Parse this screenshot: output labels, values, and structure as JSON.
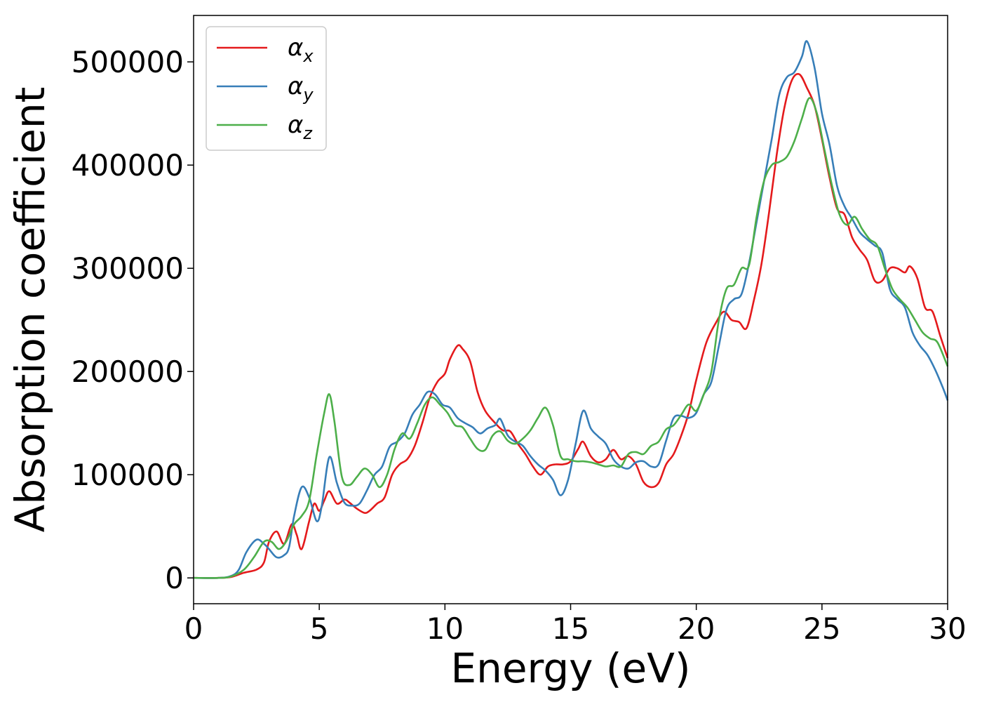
{
  "chart_data": {
    "type": "line",
    "title": "",
    "xlabel": "Energy (eV)",
    "ylabel": "Absorption coefficient",
    "xlim": [
      0,
      30
    ],
    "ylim": [
      -25000,
      545000
    ],
    "xticks": [
      "0",
      "5",
      "10",
      "15",
      "20",
      "25",
      "30"
    ],
    "yticks": [
      "0",
      "100000",
      "200000",
      "300000",
      "400000",
      "500000"
    ],
    "grid": false,
    "legend_position": "top-left",
    "series": [
      {
        "name": "αx",
        "label_base": "α",
        "label_sub": "x",
        "color": "#e41a1c",
        "points": [
          [
            0,
            0
          ],
          [
            1,
            0
          ],
          [
            1.5,
            1000
          ],
          [
            2,
            5000
          ],
          [
            2.5,
            8000
          ],
          [
            2.8,
            15000
          ],
          [
            3.0,
            35000
          ],
          [
            3.3,
            45000
          ],
          [
            3.6,
            33000
          ],
          [
            3.9,
            52000
          ],
          [
            4.1,
            42000
          ],
          [
            4.3,
            28000
          ],
          [
            4.6,
            55000
          ],
          [
            4.8,
            72000
          ],
          [
            5.0,
            65000
          ],
          [
            5.2,
            75000
          ],
          [
            5.4,
            84000
          ],
          [
            5.7,
            72000
          ],
          [
            6.0,
            76000
          ],
          [
            6.2,
            73000
          ],
          [
            6.5,
            67000
          ],
          [
            6.8,
            63000
          ],
          [
            7.0,
            65000
          ],
          [
            7.3,
            72000
          ],
          [
            7.6,
            78000
          ],
          [
            7.9,
            100000
          ],
          [
            8.2,
            110000
          ],
          [
            8.5,
            115000
          ],
          [
            8.8,
            128000
          ],
          [
            9.1,
            150000
          ],
          [
            9.4,
            175000
          ],
          [
            9.7,
            190000
          ],
          [
            10.0,
            198000
          ],
          [
            10.2,
            212000
          ],
          [
            10.5,
            225000
          ],
          [
            10.7,
            222000
          ],
          [
            11.0,
            210000
          ],
          [
            11.3,
            180000
          ],
          [
            11.6,
            162000
          ],
          [
            12.0,
            150000
          ],
          [
            12.3,
            143000
          ],
          [
            12.6,
            142000
          ],
          [
            12.9,
            130000
          ],
          [
            13.2,
            120000
          ],
          [
            13.5,
            108000
          ],
          [
            13.8,
            100000
          ],
          [
            14.1,
            108000
          ],
          [
            14.4,
            110000
          ],
          [
            14.7,
            110000
          ],
          [
            15.0,
            113000
          ],
          [
            15.3,
            125000
          ],
          [
            15.5,
            132000
          ],
          [
            15.8,
            118000
          ],
          [
            16.1,
            112000
          ],
          [
            16.4,
            115000
          ],
          [
            16.7,
            124000
          ],
          [
            17.0,
            115000
          ],
          [
            17.3,
            118000
          ],
          [
            17.6,
            110000
          ],
          [
            17.9,
            93000
          ],
          [
            18.2,
            88000
          ],
          [
            18.5,
            92000
          ],
          [
            18.8,
            110000
          ],
          [
            19.1,
            120000
          ],
          [
            19.4,
            138000
          ],
          [
            19.7,
            160000
          ],
          [
            20.0,
            192000
          ],
          [
            20.4,
            228000
          ],
          [
            20.8,
            248000
          ],
          [
            21.1,
            258000
          ],
          [
            21.4,
            250000
          ],
          [
            21.7,
            248000
          ],
          [
            22.0,
            242000
          ],
          [
            22.3,
            270000
          ],
          [
            22.6,
            305000
          ],
          [
            22.9,
            355000
          ],
          [
            23.2,
            410000
          ],
          [
            23.5,
            455000
          ],
          [
            23.8,
            482000
          ],
          [
            24.1,
            488000
          ],
          [
            24.4,
            475000
          ],
          [
            24.7,
            458000
          ],
          [
            25.0,
            425000
          ],
          [
            25.3,
            388000
          ],
          [
            25.6,
            358000
          ],
          [
            25.9,
            352000
          ],
          [
            26.2,
            330000
          ],
          [
            26.5,
            318000
          ],
          [
            26.8,
            308000
          ],
          [
            27.1,
            288000
          ],
          [
            27.4,
            288000
          ],
          [
            27.7,
            300000
          ],
          [
            28.0,
            300000
          ],
          [
            28.3,
            296000
          ],
          [
            28.5,
            302000
          ],
          [
            28.8,
            290000
          ],
          [
            29.1,
            262000
          ],
          [
            29.4,
            258000
          ],
          [
            29.7,
            235000
          ],
          [
            30.0,
            213000
          ]
        ]
      },
      {
        "name": "αy",
        "label_base": "α",
        "label_sub": "y",
        "color": "#377eb8",
        "points": [
          [
            0,
            0
          ],
          [
            1,
            0
          ],
          [
            1.5,
            2000
          ],
          [
            1.8,
            8000
          ],
          [
            2.1,
            25000
          ],
          [
            2.5,
            37000
          ],
          [
            2.8,
            33000
          ],
          [
            3.0,
            28000
          ],
          [
            3.3,
            20000
          ],
          [
            3.6,
            22000
          ],
          [
            3.8,
            30000
          ],
          [
            4.0,
            60000
          ],
          [
            4.3,
            88000
          ],
          [
            4.6,
            78000
          ],
          [
            4.9,
            55000
          ],
          [
            5.1,
            70000
          ],
          [
            5.4,
            117000
          ],
          [
            5.7,
            92000
          ],
          [
            6.0,
            73000
          ],
          [
            6.3,
            70000
          ],
          [
            6.6,
            72000
          ],
          [
            6.9,
            85000
          ],
          [
            7.2,
            100000
          ],
          [
            7.5,
            108000
          ],
          [
            7.8,
            127000
          ],
          [
            8.1,
            132000
          ],
          [
            8.4,
            140000
          ],
          [
            8.7,
            158000
          ],
          [
            9.0,
            168000
          ],
          [
            9.3,
            180000
          ],
          [
            9.6,
            178000
          ],
          [
            9.9,
            168000
          ],
          [
            10.2,
            165000
          ],
          [
            10.5,
            155000
          ],
          [
            10.8,
            150000
          ],
          [
            11.1,
            146000
          ],
          [
            11.4,
            140000
          ],
          [
            11.7,
            145000
          ],
          [
            12.0,
            148000
          ],
          [
            12.2,
            154000
          ],
          [
            12.5,
            138000
          ],
          [
            12.8,
            132000
          ],
          [
            13.1,
            128000
          ],
          [
            13.4,
            118000
          ],
          [
            13.7,
            110000
          ],
          [
            14.0,
            104000
          ],
          [
            14.3,
            95000
          ],
          [
            14.6,
            80000
          ],
          [
            14.9,
            95000
          ],
          [
            15.2,
            130000
          ],
          [
            15.5,
            162000
          ],
          [
            15.8,
            145000
          ],
          [
            16.1,
            137000
          ],
          [
            16.4,
            130000
          ],
          [
            16.7,
            115000
          ],
          [
            17.0,
            108000
          ],
          [
            17.3,
            106000
          ],
          [
            17.6,
            112000
          ],
          [
            17.9,
            113000
          ],
          [
            18.2,
            108000
          ],
          [
            18.5,
            110000
          ],
          [
            18.8,
            133000
          ],
          [
            19.1,
            155000
          ],
          [
            19.4,
            157000
          ],
          [
            19.7,
            155000
          ],
          [
            20.0,
            160000
          ],
          [
            20.3,
            178000
          ],
          [
            20.6,
            190000
          ],
          [
            20.9,
            225000
          ],
          [
            21.2,
            260000
          ],
          [
            21.5,
            270000
          ],
          [
            21.8,
            275000
          ],
          [
            22.1,
            305000
          ],
          [
            22.4,
            345000
          ],
          [
            22.7,
            385000
          ],
          [
            23.0,
            425000
          ],
          [
            23.3,
            468000
          ],
          [
            23.6,
            485000
          ],
          [
            23.9,
            490000
          ],
          [
            24.2,
            505000
          ],
          [
            24.4,
            520000
          ],
          [
            24.7,
            495000
          ],
          [
            25.0,
            450000
          ],
          [
            25.3,
            420000
          ],
          [
            25.6,
            380000
          ],
          [
            25.9,
            360000
          ],
          [
            26.2,
            348000
          ],
          [
            26.5,
            335000
          ],
          [
            26.8,
            328000
          ],
          [
            27.1,
            322000
          ],
          [
            27.4,
            315000
          ],
          [
            27.7,
            280000
          ],
          [
            28.0,
            270000
          ],
          [
            28.3,
            262000
          ],
          [
            28.6,
            238000
          ],
          [
            28.9,
            225000
          ],
          [
            29.2,
            216000
          ],
          [
            29.5,
            202000
          ],
          [
            29.8,
            185000
          ],
          [
            30.0,
            172000
          ]
        ]
      },
      {
        "name": "αz",
        "label_base": "α",
        "label_sub": "z",
        "color": "#4daf4a",
        "points": [
          [
            0,
            0
          ],
          [
            1,
            0
          ],
          [
            1.5,
            1500
          ],
          [
            2.0,
            8000
          ],
          [
            2.4,
            20000
          ],
          [
            2.8,
            35000
          ],
          [
            3.1,
            35000
          ],
          [
            3.4,
            28000
          ],
          [
            3.7,
            36000
          ],
          [
            4.0,
            52000
          ],
          [
            4.3,
            60000
          ],
          [
            4.6,
            75000
          ],
          [
            4.9,
            120000
          ],
          [
            5.2,
            160000
          ],
          [
            5.4,
            178000
          ],
          [
            5.6,
            152000
          ],
          [
            5.9,
            98000
          ],
          [
            6.2,
            90000
          ],
          [
            6.5,
            98000
          ],
          [
            6.8,
            106000
          ],
          [
            7.1,
            100000
          ],
          [
            7.4,
            88000
          ],
          [
            7.7,
            100000
          ],
          [
            8.0,
            125000
          ],
          [
            8.3,
            140000
          ],
          [
            8.6,
            135000
          ],
          [
            8.9,
            150000
          ],
          [
            9.2,
            168000
          ],
          [
            9.5,
            175000
          ],
          [
            9.8,
            168000
          ],
          [
            10.1,
            160000
          ],
          [
            10.4,
            148000
          ],
          [
            10.7,
            146000
          ],
          [
            11.0,
            135000
          ],
          [
            11.3,
            125000
          ],
          [
            11.6,
            124000
          ],
          [
            11.9,
            138000
          ],
          [
            12.2,
            142000
          ],
          [
            12.5,
            133000
          ],
          [
            12.8,
            130000
          ],
          [
            13.1,
            135000
          ],
          [
            13.4,
            143000
          ],
          [
            13.7,
            155000
          ],
          [
            14.0,
            165000
          ],
          [
            14.3,
            148000
          ],
          [
            14.6,
            118000
          ],
          [
            14.9,
            115000
          ],
          [
            15.2,
            113000
          ],
          [
            15.5,
            113000
          ],
          [
            15.8,
            112000
          ],
          [
            16.1,
            110000
          ],
          [
            16.4,
            108000
          ],
          [
            16.7,
            109000
          ],
          [
            17.0,
            108000
          ],
          [
            17.3,
            120000
          ],
          [
            17.6,
            122000
          ],
          [
            17.9,
            120000
          ],
          [
            18.2,
            128000
          ],
          [
            18.5,
            132000
          ],
          [
            18.8,
            144000
          ],
          [
            19.1,
            148000
          ],
          [
            19.4,
            158000
          ],
          [
            19.7,
            168000
          ],
          [
            20.0,
            162000
          ],
          [
            20.3,
            178000
          ],
          [
            20.6,
            200000
          ],
          [
            20.9,
            250000
          ],
          [
            21.2,
            280000
          ],
          [
            21.5,
            284000
          ],
          [
            21.8,
            300000
          ],
          [
            22.1,
            303000
          ],
          [
            22.4,
            350000
          ],
          [
            22.7,
            385000
          ],
          [
            23.0,
            400000
          ],
          [
            23.3,
            403000
          ],
          [
            23.6,
            408000
          ],
          [
            23.9,
            423000
          ],
          [
            24.2,
            445000
          ],
          [
            24.5,
            465000
          ],
          [
            24.8,
            450000
          ],
          [
            25.1,
            415000
          ],
          [
            25.4,
            380000
          ],
          [
            25.7,
            352000
          ],
          [
            26.0,
            342000
          ],
          [
            26.3,
            350000
          ],
          [
            26.6,
            338000
          ],
          [
            26.9,
            328000
          ],
          [
            27.2,
            322000
          ],
          [
            27.5,
            300000
          ],
          [
            27.8,
            280000
          ],
          [
            28.1,
            270000
          ],
          [
            28.4,
            262000
          ],
          [
            28.7,
            250000
          ],
          [
            29.0,
            238000
          ],
          [
            29.3,
            232000
          ],
          [
            29.6,
            228000
          ],
          [
            30.0,
            205000
          ]
        ]
      }
    ]
  }
}
